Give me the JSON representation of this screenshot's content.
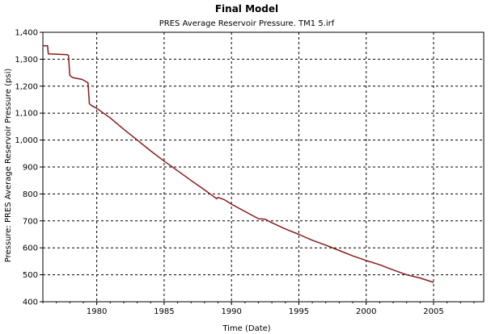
{
  "chart_data": {
    "type": "line",
    "title": "Final Model",
    "subtitle": "PRES  Average Reservoir Pressure. TM1 5.irf",
    "xlabel": "Time (Date)",
    "ylabel": "Pressure: PRES  Average Reservoir Pressure (psi)",
    "xlim": [
      1976.0,
      2004.0
    ],
    "ylim": [
      400,
      1400
    ],
    "x_ticks": [
      1980,
      1985,
      1990,
      1995,
      2000,
      2005
    ],
    "x_tick_labels": [
      "1980",
      "1985",
      "1990",
      "1995",
      "2000",
      "2005"
    ],
    "y_ticks": [
      400,
      500,
      600,
      700,
      800,
      900,
      1000,
      1100,
      1200,
      1300,
      1400
    ],
    "y_tick_labels": [
      "400",
      "500",
      "600",
      "700",
      "800",
      "900",
      "1,000",
      "1,100",
      "1,200",
      "1,300",
      "1,400"
    ],
    "grid": true,
    "grid_style": "dashed",
    "line_color": "#8b1a1a",
    "series": [
      {
        "values_xy": [
          [
            1976.0,
            1350
          ],
          [
            1976.35,
            1350
          ],
          [
            1976.4,
            1320
          ],
          [
            1977.8,
            1317
          ],
          [
            1977.9,
            1315
          ],
          [
            1978.0,
            1240
          ],
          [
            1978.2,
            1232
          ],
          [
            1978.9,
            1225
          ],
          [
            1979.35,
            1213
          ],
          [
            1979.45,
            1135
          ],
          [
            1979.6,
            1128
          ],
          [
            1980.0,
            1118
          ],
          [
            1980.5,
            1100
          ],
          [
            1981.0,
            1082
          ],
          [
            1982.0,
            1040
          ],
          [
            1983.0,
            1000
          ],
          [
            1984.0,
            960
          ],
          [
            1985.0,
            922
          ],
          [
            1986.0,
            886
          ],
          [
            1987.0,
            850
          ],
          [
            1988.0,
            815
          ],
          [
            1988.6,
            793
          ],
          [
            1988.9,
            782
          ],
          [
            1989.0,
            787
          ],
          [
            1989.5,
            778
          ],
          [
            1990.0,
            762
          ],
          [
            1991.0,
            735
          ],
          [
            1992.0,
            708
          ],
          [
            1992.5,
            706
          ],
          [
            1993.0,
            693
          ],
          [
            1994.0,
            670
          ],
          [
            1995.0,
            650
          ],
          [
            1996.0,
            628
          ],
          [
            1997.0,
            610
          ],
          [
            1998.0,
            590
          ],
          [
            1999.0,
            570
          ],
          [
            2000.0,
            553
          ],
          [
            2001.0,
            537
          ],
          [
            2002.0,
            518
          ],
          [
            2003.0,
            500
          ],
          [
            2004.0,
            488
          ],
          [
            2005.0,
            472
          ]
        ]
      }
    ]
  }
}
